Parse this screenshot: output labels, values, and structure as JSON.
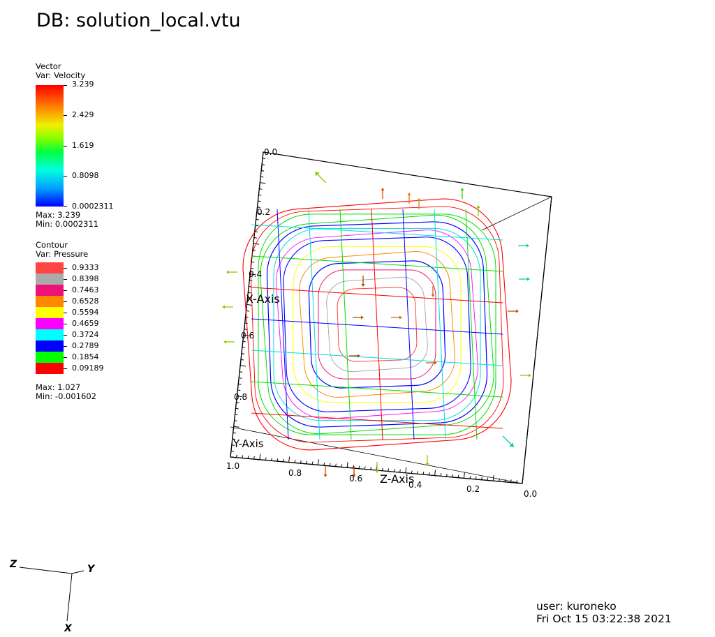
{
  "title": "DB: solution_local.vtu",
  "vector_legend": {
    "header": "Vector",
    "var": "Var: Velocity",
    "ticks": [
      "3.239",
      "2.429",
      "1.619",
      "0.8098",
      "0.0002311"
    ],
    "max": "Max:  3.239",
    "min": "Min:  0.0002311"
  },
  "contour_legend": {
    "header": "Contour",
    "var": "Var: Pressure",
    "levels": [
      {
        "label": "0.9333",
        "color": "#ff4444"
      },
      {
        "label": "0.8398",
        "color": "#aaaaaa"
      },
      {
        "label": "0.7463",
        "color": "#ee1177"
      },
      {
        "label": "0.6528",
        "color": "#ff8800"
      },
      {
        "label": "0.5594",
        "color": "#ffff00"
      },
      {
        "label": "0.4659",
        "color": "#ff00ff"
      },
      {
        "label": "0.3724",
        "color": "#00ffff"
      },
      {
        "label": "0.2789",
        "color": "#0000ff"
      },
      {
        "label": "0.1854",
        "color": "#00ff00"
      },
      {
        "label": "0.09189",
        "color": "#ff0000"
      }
    ],
    "max": "Max:  1.027",
    "min": "Min: -0.001602"
  },
  "axes": {
    "x_axis_title": "X-Axis",
    "y_axis_title": "Y-Axis",
    "z_axis_title": "Z-Axis",
    "x_ticks": [
      "0.0",
      "0.2",
      "0.4",
      "0.6",
      "0.8"
    ],
    "z_ticks": [
      "1.0",
      "0.8",
      "0.6",
      "0.4",
      "0.2",
      "0.0"
    ]
  },
  "triad": {
    "x": "X",
    "y": "Y",
    "z": "Z"
  },
  "user": "user: kuroneko",
  "timestamp": "Fri Oct 15 03:22:38 2021",
  "colors": {
    "contour_primary": "#ff0000",
    "mesh_blue": "#0000ff",
    "mesh_green": "#00dd00",
    "mesh_cyan": "#00dddd"
  }
}
